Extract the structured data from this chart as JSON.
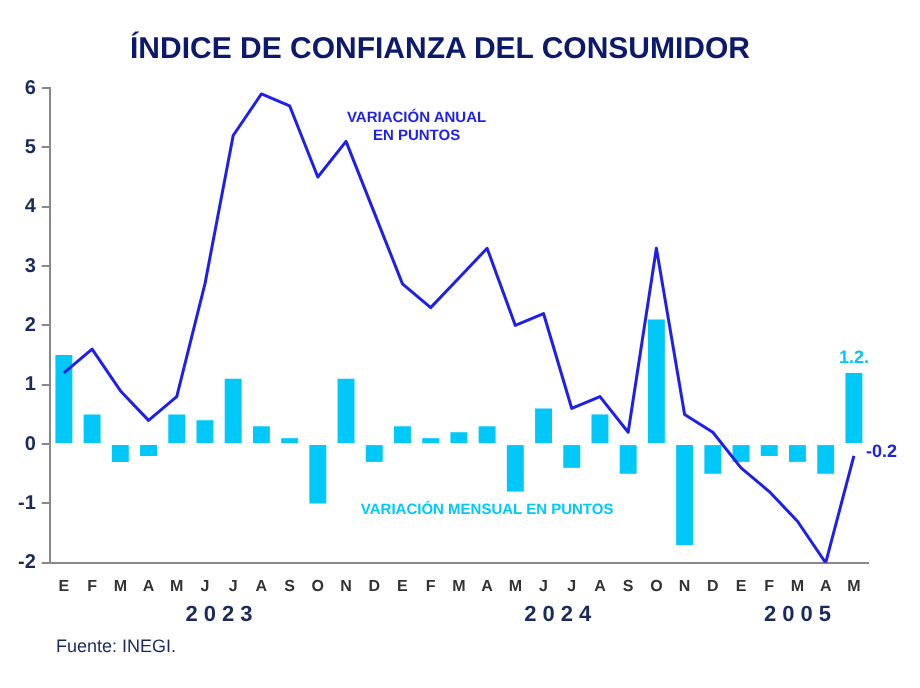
{
  "chart_data": {
    "type": "bar",
    "title": "ÍNDICE DE CONFIANZA DEL CONSUMIDOR",
    "categories": [
      "E",
      "F",
      "M",
      "A",
      "M",
      "J",
      "J",
      "A",
      "S",
      "O",
      "N",
      "D",
      "E",
      "F",
      "M",
      "A",
      "M",
      "J",
      "J",
      "A",
      "S",
      "O",
      "N",
      "D",
      "E",
      "F",
      "M",
      "A",
      "M"
    ],
    "series": [
      {
        "name": "VARIACIÓN MENSUAL EN PUNTOS",
        "color": "#00c8f8",
        "values": [
          1.5,
          0.5,
          -0.3,
          -0.2,
          0.5,
          0.4,
          1.1,
          0.3,
          0.1,
          -1.0,
          1.1,
          -0.3,
          0.3,
          0.1,
          0.2,
          0.3,
          -0.8,
          0.6,
          -0.4,
          0.5,
          -0.5,
          2.1,
          -1.7,
          -0.5,
          -0.3,
          -0.2,
          -0.3,
          -0.5,
          1.2
        ],
        "value_labels": [
          null,
          null,
          null,
          null,
          null,
          null,
          null,
          null,
          null,
          null,
          null,
          null,
          null,
          null,
          null,
          null,
          null,
          null,
          null,
          null,
          null,
          null,
          null,
          null,
          null,
          null,
          null,
          null,
          "1.2."
        ]
      },
      {
        "name": "VARIACIÓN ANUAL EN PUNTOS",
        "type": "line",
        "color": "#1f1fe8",
        "values": [
          1.2,
          1.6,
          0.9,
          0.4,
          0.8,
          2.7,
          5.2,
          5.9,
          5.7,
          4.5,
          5.1,
          3.9,
          2.7,
          2.3,
          2.8,
          3.3,
          2.0,
          2.2,
          0.6,
          0.8,
          0.2,
          3.3,
          0.5,
          0.2,
          -0.4,
          -0.8,
          -1.3,
          -2.0,
          -0.2
        ],
        "value_labels": [
          null,
          null,
          null,
          null,
          null,
          null,
          null,
          null,
          null,
          null,
          null,
          null,
          null,
          null,
          null,
          null,
          null,
          null,
          null,
          null,
          null,
          null,
          null,
          null,
          null,
          null,
          null,
          null,
          "-0.2"
        ]
      }
    ],
    "ylim": [
      -2,
      6
    ],
    "yticks": [
      -2,
      -1,
      0,
      1,
      2,
      3,
      4,
      5,
      6
    ],
    "grid": false,
    "legend": false,
    "marker": "none",
    "annotations": [
      "2023",
      "2024",
      "2005",
      "Fuente: INEGI."
    ]
  }
}
